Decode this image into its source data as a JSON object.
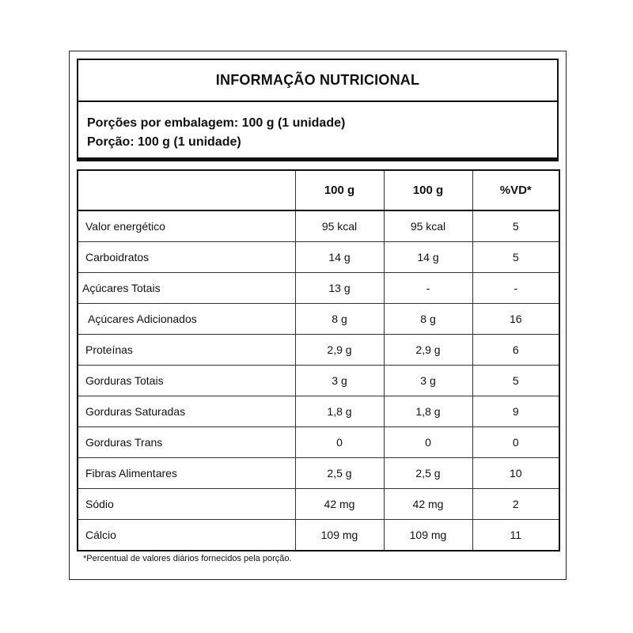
{
  "title": "INFORMAÇÃO NUTRICIONAL",
  "serving": {
    "per_package": "Porções por embalagem: 100 g (1 unidade)",
    "portion": "Porção: 100 g (1 unidade)"
  },
  "table": {
    "headers": [
      "",
      "100 g",
      "100 g",
      "%VD*"
    ],
    "rows": [
      {
        "name": "Valor energético",
        "col1": "95 kcal",
        "col2": "95 kcal",
        "vd": "5"
      },
      {
        "name": "Carboidratos",
        "col1": "14 g",
        "col2": "14 g",
        "vd": "5"
      },
      {
        "name": "Açúcares Totais",
        "col1": "13 g",
        "col2": "-",
        "vd": "-"
      },
      {
        "name": "Açúcares Adicionados",
        "col1": "8 g",
        "col2": "8 g",
        "vd": "16"
      },
      {
        "name": "Proteínas",
        "col1": "2,9 g",
        "col2": "2,9 g",
        "vd": "6"
      },
      {
        "name": "Gorduras Totais",
        "col1": "3 g",
        "col2": "3 g",
        "vd": "5"
      },
      {
        "name": "Gorduras Saturadas",
        "col1": "1,8 g",
        "col2": "1,8 g",
        "vd": "9"
      },
      {
        "name": "Gorduras Trans",
        "col1": "0",
        "col2": "0",
        "vd": "0"
      },
      {
        "name": "Fibras Alimentares",
        "col1": "2,5 g",
        "col2": "2,5 g",
        "vd": "10"
      },
      {
        "name": "Sódio",
        "col1": "42 mg",
        "col2": "42 mg",
        "vd": "2"
      },
      {
        "name": "Cálcio",
        "col1": "109 mg",
        "col2": "109 mg",
        "vd": "11"
      }
    ]
  },
  "footnote": "*Percentual de valores diários fornecidos pela porção."
}
